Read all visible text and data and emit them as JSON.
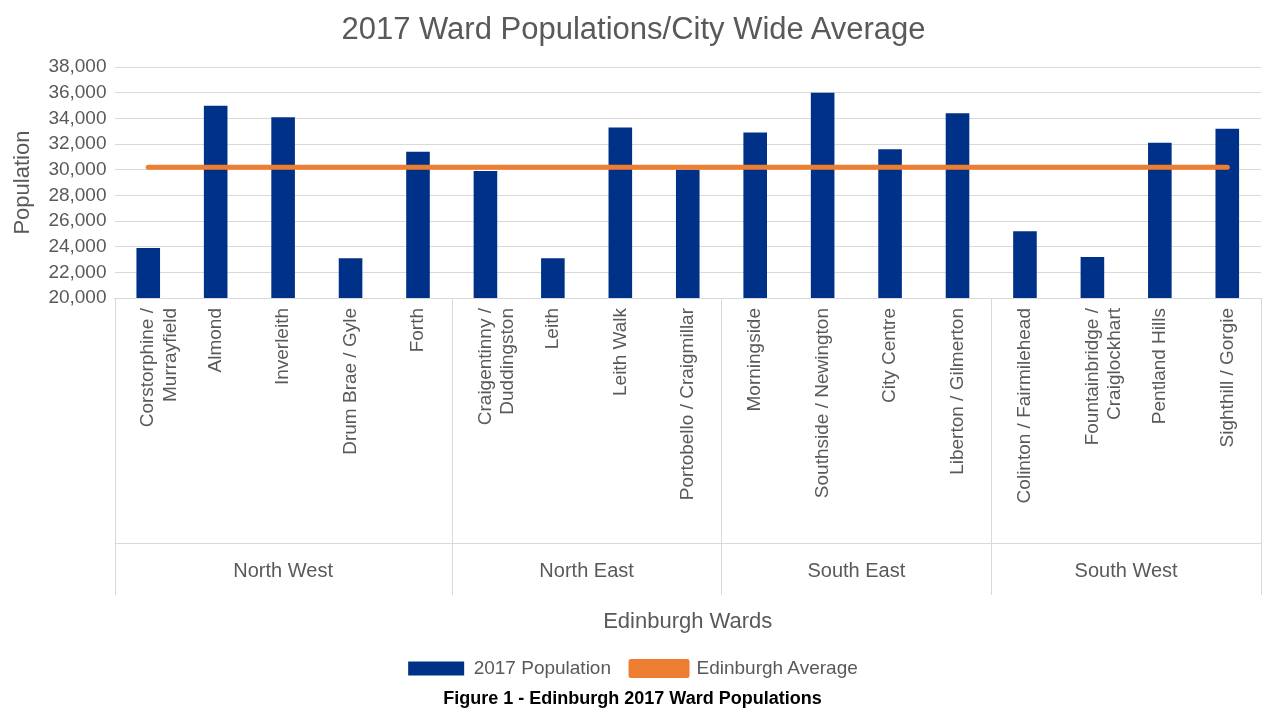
{
  "chart_data": {
    "type": "bar",
    "title": "2017 Ward Populations/City Wide Average",
    "xlabel": "Edinburgh Wards",
    "ylabel": "Population",
    "categories": [
      "Corstorphine / Murrayfield",
      "Almond",
      "Inverleith",
      "Drum Brae / Gyle",
      "Forth",
      "Craigentinny / Duddingston",
      "Leith",
      "Leith Walk",
      "Portobello / Craigmillar",
      "Morningside",
      "Southside / Newington",
      "City Centre",
      "Liberton / Gilmerton",
      "Colinton / Fairmilehead",
      "Fountainbridge / Craiglockhart",
      "Pentland Hills",
      "Sighthill / Gorgie"
    ],
    "series": [
      {
        "name": "2017 Population",
        "color": "#003189",
        "values": [
          23900,
          35000,
          34100,
          23100,
          31400,
          29900,
          23100,
          33300,
          30000,
          32900,
          36000,
          31600,
          34400,
          25200,
          23200,
          32100,
          33200
        ]
      },
      {
        "name": "Edinburgh Average",
        "type": "line",
        "color": "#ed7d31",
        "values": [
          30200,
          30200,
          30200,
          30200,
          30200,
          30200,
          30200,
          30200,
          30200,
          30200,
          30200,
          30200,
          30200,
          30200,
          30200,
          30200,
          30200
        ]
      }
    ],
    "ylim": [
      20000,
      38000
    ],
    "yticks": [
      {
        "value": 20000,
        "label": "20,000"
      },
      {
        "value": 22000,
        "label": "22,000"
      },
      {
        "value": 24000,
        "label": "24,000"
      },
      {
        "value": 26000,
        "label": "26,000"
      },
      {
        "value": 28000,
        "label": "28,000"
      },
      {
        "value": 30000,
        "label": "30,000"
      },
      {
        "value": 32000,
        "label": "32,000"
      },
      {
        "value": 34000,
        "label": "34,000"
      },
      {
        "value": 36000,
        "label": "36,000"
      },
      {
        "value": 38000,
        "label": "38,000"
      }
    ],
    "grid": "y",
    "legend": "bottom",
    "marker": "none",
    "annotations": [
      "North West",
      "North East",
      "South East",
      "South West",
      "Figure 1 - Edinburgh 2017 Ward Populations"
    ]
  }
}
